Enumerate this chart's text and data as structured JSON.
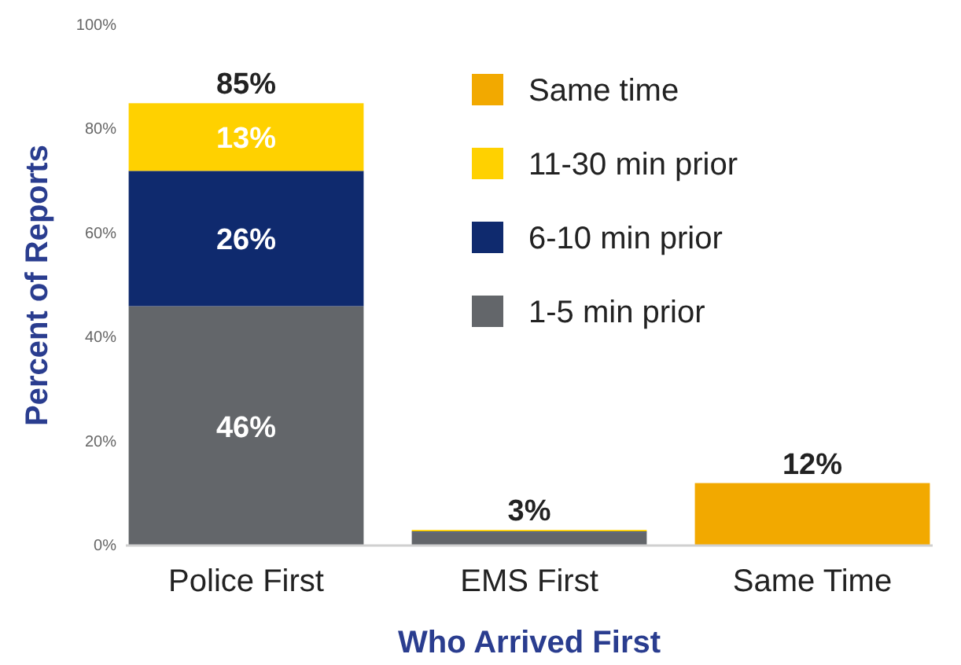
{
  "chart_data": {
    "type": "bar",
    "stacked": true,
    "xlabel": "Who Arrived First",
    "ylabel": "Percent of Reports",
    "categories": [
      "Police First",
      "EMS First",
      "Same Time"
    ],
    "series": [
      {
        "name": "1-5 min prior",
        "color": "#63666a",
        "values": [
          46,
          2.5,
          0
        ],
        "value_labels": [
          "46%",
          null,
          null
        ]
      },
      {
        "name": "6-10 min prior",
        "color": "#0f2a6e",
        "values": [
          26,
          0.2,
          0
        ],
        "value_labels": [
          "26%",
          null,
          null
        ]
      },
      {
        "name": "11-30 min prior",
        "color": "#ffd100",
        "values": [
          13,
          0.3,
          0
        ],
        "value_labels": [
          "13%",
          null,
          null
        ]
      },
      {
        "name": "Same time",
        "color": "#f2a900",
        "values": [
          0,
          0,
          12
        ],
        "value_labels": [
          null,
          null,
          null
        ]
      }
    ],
    "totals": [
      "85%",
      "3%",
      "12%"
    ],
    "ylim": [
      0,
      100
    ],
    "yticks": [
      {
        "value": 0,
        "label": "0%"
      },
      {
        "value": 20,
        "label": "20%"
      },
      {
        "value": 40,
        "label": "40%"
      },
      {
        "value": 60,
        "label": "60%"
      },
      {
        "value": 80,
        "label": "80%"
      },
      {
        "value": 100,
        "label": "100%"
      }
    ],
    "grid": false,
    "legend": "top right"
  }
}
